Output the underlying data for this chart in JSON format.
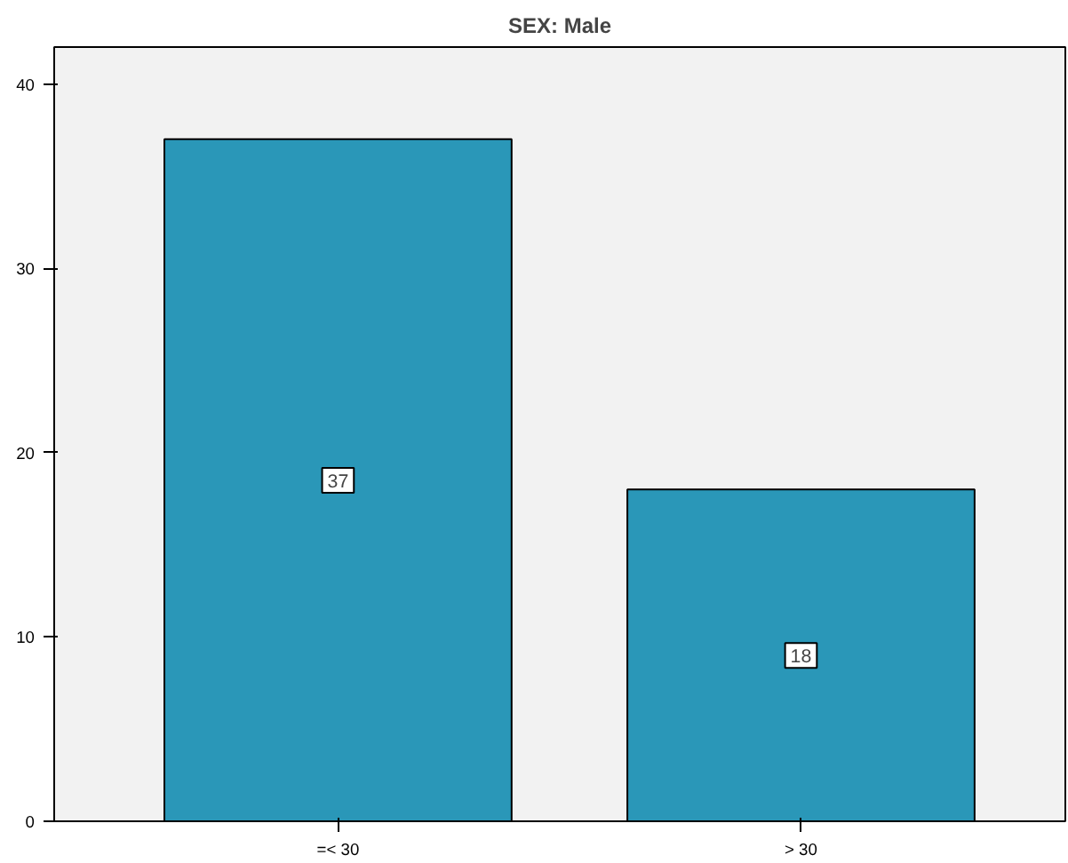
{
  "chart_data": {
    "type": "bar",
    "title": "SEX: Male",
    "categories": [
      "=< 30",
      "> 30"
    ],
    "values": [
      37,
      18
    ],
    "color": "#2a97b8",
    "ylim": [
      0,
      42
    ],
    "yticks": [
      0,
      10,
      20,
      30,
      40
    ],
    "data_labels": true,
    "grid": false
  }
}
